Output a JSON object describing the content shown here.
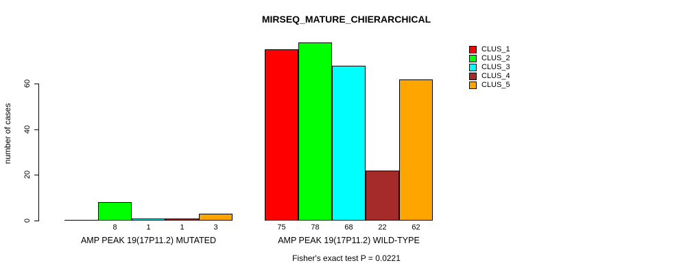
{
  "title": "MIRSEQ_MATURE_CHIERARCHICAL",
  "chart_data": {
    "type": "bar",
    "title": "MIRSEQ_MATURE_CHIERARCHICAL",
    "ylabel": "number of cases",
    "xlabel": "",
    "ylim": [
      0,
      80
    ],
    "yticks": [
      0,
      20,
      40,
      60
    ],
    "grid": false,
    "legend_position": "top-right",
    "series": [
      {
        "name": "CLUS_1",
        "color": "#FF0000"
      },
      {
        "name": "CLUS_2",
        "color": "#00FF00"
      },
      {
        "name": "CLUS_3",
        "color": "#00FFFF"
      },
      {
        "name": "CLUS_4",
        "color": "#A52A2A"
      },
      {
        "name": "CLUS_5",
        "color": "#FFA500"
      }
    ],
    "groups": [
      {
        "label": "AMP PEAK 19(17P11.2) MUTATED",
        "values": [
          0,
          8,
          1,
          1,
          3
        ],
        "value_labels": [
          "",
          "8",
          "1",
          "1",
          "3"
        ]
      },
      {
        "label": "AMP PEAK 19(17P11.2) WILD-TYPE",
        "values": [
          75,
          78,
          68,
          22,
          62
        ],
        "value_labels": [
          "75",
          "78",
          "68",
          "22",
          "62"
        ]
      }
    ],
    "annotation": "Fisher's exact test P = 0.0221"
  }
}
